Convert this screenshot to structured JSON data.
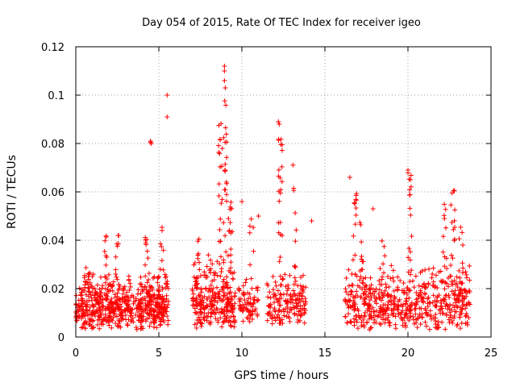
{
  "chart_data": {
    "type": "scatter",
    "title": "Day 054 of 2015, Rate Of TEC Index for receiver igeo",
    "xlabel": "GPS time / hours",
    "ylabel": "ROTI / TECUs",
    "xlim": [
      0,
      25
    ],
    "ylim": [
      0,
      0.12
    ],
    "xticks": [
      0,
      5,
      10,
      15,
      20,
      25
    ],
    "xtick_labels": [
      "0",
      "5",
      "10",
      "15",
      "20",
      "25"
    ],
    "yticks": [
      0,
      0.02,
      0.04,
      0.06,
      0.08,
      0.1,
      0.12
    ],
    "ytick_labels": [
      "0",
      "0.02",
      "0.04",
      "0.06",
      "0.08",
      "0.1",
      "0.12"
    ],
    "grid": true,
    "marker": "+",
    "color": "#ff0000",
    "seed": 54,
    "clusters": [
      {
        "x_start": 0.0,
        "x_end": 5.6,
        "y_min": 0.003,
        "y_max": 0.028,
        "n": 620
      },
      {
        "x_start": 7.0,
        "x_end": 9.6,
        "y_min": 0.003,
        "y_max": 0.035,
        "n": 280
      },
      {
        "x_start": 9.8,
        "x_end": 11.0,
        "y_min": 0.006,
        "y_max": 0.025,
        "n": 70
      },
      {
        "x_start": 11.5,
        "x_end": 13.9,
        "y_min": 0.005,
        "y_max": 0.03,
        "n": 160
      },
      {
        "x_start": 16.2,
        "x_end": 23.8,
        "y_min": 0.003,
        "y_max": 0.03,
        "n": 560
      }
    ],
    "spikes": [
      {
        "x": 0.7,
        "y_min": 0.02,
        "y_max": 0.032,
        "n": 8
      },
      {
        "x": 1.8,
        "y_min": 0.02,
        "y_max": 0.042,
        "n": 10
      },
      {
        "x": 2.5,
        "y_min": 0.02,
        "y_max": 0.042,
        "n": 10
      },
      {
        "x": 4.3,
        "y_min": 0.025,
        "y_max": 0.042,
        "n": 10
      },
      {
        "x": 5.2,
        "y_min": 0.022,
        "y_max": 0.048,
        "n": 8
      },
      {
        "x": 7.3,
        "y_min": 0.02,
        "y_max": 0.045,
        "n": 8
      },
      {
        "x": 8.7,
        "y_min": 0.03,
        "y_max": 0.09,
        "n": 20
      },
      {
        "x": 9.0,
        "y_min": 0.03,
        "y_max": 0.1,
        "n": 22
      },
      {
        "x": 9.3,
        "y_min": 0.03,
        "y_max": 0.06,
        "n": 12
      },
      {
        "x": 10.6,
        "y_min": 0.025,
        "y_max": 0.05,
        "n": 6
      },
      {
        "x": 12.3,
        "y_min": 0.03,
        "y_max": 0.088,
        "n": 22
      },
      {
        "x": 13.2,
        "y_min": 0.02,
        "y_max": 0.072,
        "n": 10
      },
      {
        "x": 16.8,
        "y_min": 0.025,
        "y_max": 0.06,
        "n": 14
      },
      {
        "x": 17.2,
        "y_min": 0.022,
        "y_max": 0.06,
        "n": 10
      },
      {
        "x": 18.5,
        "y_min": 0.02,
        "y_max": 0.042,
        "n": 8
      },
      {
        "x": 20.1,
        "y_min": 0.025,
        "y_max": 0.068,
        "n": 16
      },
      {
        "x": 22.2,
        "y_min": 0.022,
        "y_max": 0.058,
        "n": 10
      },
      {
        "x": 22.7,
        "y_min": 0.025,
        "y_max": 0.063,
        "n": 14
      },
      {
        "x": 23.2,
        "y_min": 0.022,
        "y_max": 0.049,
        "n": 10
      }
    ],
    "outliers": [
      {
        "x": 4.5,
        "y": 0.081
      },
      {
        "x": 4.5,
        "y": 0.0805
      },
      {
        "x": 4.55,
        "y": 0.08
      },
      {
        "x": 5.5,
        "y": 0.1
      },
      {
        "x": 5.5,
        "y": 0.091
      },
      {
        "x": 8.95,
        "y": 0.112
      },
      {
        "x": 8.95,
        "y": 0.11
      },
      {
        "x": 8.95,
        "y": 0.106
      },
      {
        "x": 9.0,
        "y": 0.103
      },
      {
        "x": 12.2,
        "y": 0.089
      },
      {
        "x": 12.25,
        "y": 0.088
      },
      {
        "x": 10.0,
        "y": 0.056
      },
      {
        "x": 11.0,
        "y": 0.05
      },
      {
        "x": 14.2,
        "y": 0.048
      },
      {
        "x": 16.5,
        "y": 0.066
      },
      {
        "x": 17.9,
        "y": 0.053
      },
      {
        "x": 20.0,
        "y": 0.069
      }
    ]
  }
}
